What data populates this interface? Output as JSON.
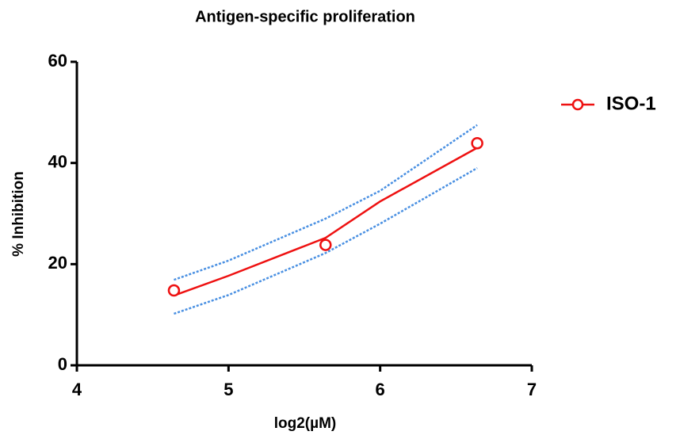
{
  "chart_data": {
    "type": "scatter",
    "title": "Antigen-specific proliferation",
    "x_label": "log2(µM)",
    "y_label": "% Inhibition",
    "xlim": [
      4,
      7
    ],
    "xticks": [
      4,
      5,
      6,
      7
    ],
    "ylim": [
      0,
      60
    ],
    "yticks": [
      0,
      20,
      40,
      60
    ],
    "series": [
      {
        "name": "ISO-1",
        "color": "#ee1111",
        "x": [
          4.64,
          5.64,
          6.64
        ],
        "values": [
          14.8,
          23.8,
          43.9
        ]
      }
    ],
    "fit": {
      "color": "#ee1111",
      "x": [
        4.64,
        5,
        5.64,
        6,
        6.64
      ],
      "values": [
        13.8,
        17.7,
        25.2,
        32.4,
        43.0
      ]
    },
    "bands": [
      {
        "color": "#4a90e2",
        "values": [
          16.9,
          20.7,
          29.0,
          34.5,
          47.5
        ]
      },
      {
        "color": "#4a90e2",
        "values": [
          10.2,
          13.9,
          22.2,
          28.0,
          39.0
        ]
      }
    ]
  }
}
